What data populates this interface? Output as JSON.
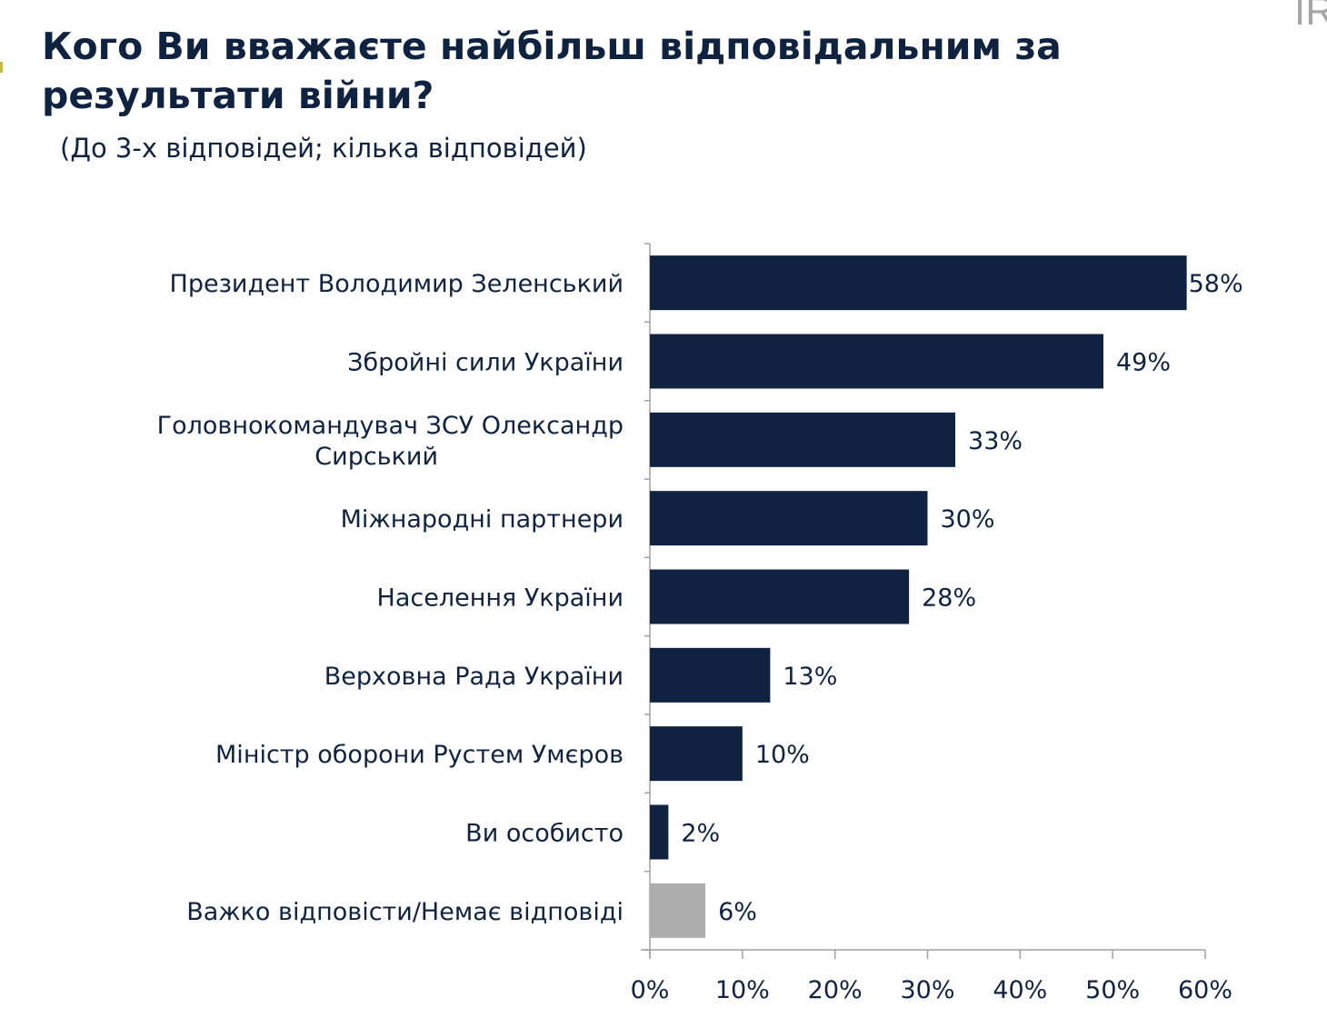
{
  "brand_fragment": "IR",
  "chart_data": {
    "type": "bar",
    "orientation": "horizontal",
    "title": "Кого Ви вважаєте найбільш відповідальним за результати війни?",
    "subtitle": "(До 3-х відповідей; кілька відповідей)",
    "categories": [
      [
        "Президент Володимир Зеленський"
      ],
      [
        "Збройні сили України"
      ],
      [
        "Головнокомандувач ЗСУ Олександр",
        "Сирський"
      ],
      [
        "Міжнародні партнери"
      ],
      [
        "Населення України"
      ],
      [
        "Верховна Рада України"
      ],
      [
        "Міністр оборони Рустем Умєров"
      ],
      [
        "Ви особисто"
      ],
      [
        "Важко відповісти/Немає відповіді"
      ]
    ],
    "values": [
      58,
      49,
      33,
      30,
      28,
      13,
      10,
      2,
      6
    ],
    "value_labels": [
      "58%",
      "49%",
      "33%",
      "30%",
      "28%",
      "13%",
      "10%",
      "2%",
      "6%"
    ],
    "colors": [
      "#0f2341",
      "#0f2341",
      "#0f2341",
      "#0f2341",
      "#0f2341",
      "#0f2341",
      "#0f2341",
      "#0f2341",
      "#adadad"
    ],
    "xlim": [
      0,
      60
    ],
    "xticks": [
      0,
      10,
      20,
      30,
      40,
      50,
      60
    ],
    "xtick_labels": [
      "0%",
      "10%",
      "20%",
      "30%",
      "40%",
      "50%",
      "60%"
    ],
    "xlabel": "",
    "ylabel": "",
    "grid": false,
    "legend": "none"
  }
}
